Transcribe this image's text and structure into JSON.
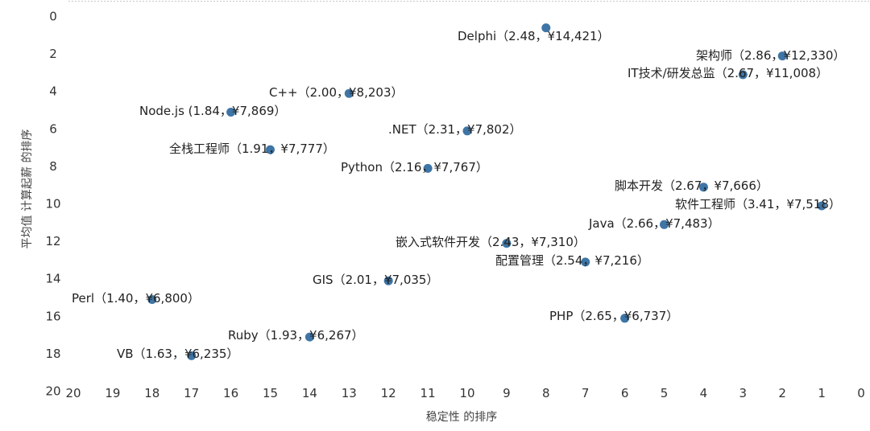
{
  "chart_data": {
    "type": "scatter",
    "title": "",
    "xlabel": "稳定性 的排序",
    "ylabel": "平均值 计算起薪 的排序",
    "xlim": [
      20,
      0
    ],
    "ylim": [
      0,
      20
    ],
    "x_reversed": true,
    "y_reversed": true,
    "x_ticks": [
      "20",
      "19",
      "18",
      "17",
      "16",
      "15",
      "14",
      "13",
      "12",
      "11",
      "10",
      "9",
      "8",
      "7",
      "6",
      "5",
      "4",
      "3",
      "2",
      "1",
      "0"
    ],
    "y_ticks": [
      "0",
      "2",
      "4",
      "6",
      "8",
      "10",
      "12",
      "14",
      "16",
      "18",
      "20"
    ],
    "grid": false,
    "marker_color": "#3E75A6",
    "points": [
      {
        "x": 8,
        "y": 0.5,
        "label": "Delphi（2.48，¥14,421）"
      },
      {
        "x": 2,
        "y": 2,
        "label": "架构师（2.86，¥12,330）"
      },
      {
        "x": 3,
        "y": 3,
        "label": "IT技术/研发总监（2.67，¥11,008）"
      },
      {
        "x": 13,
        "y": 4,
        "label": "C++（2.00，¥8,203）"
      },
      {
        "x": 16,
        "y": 5,
        "label": "Node.js (1.84，¥7,869）"
      },
      {
        "x": 10,
        "y": 6,
        "label": ".NET（2.31，¥7,802）"
      },
      {
        "x": 15,
        "y": 7,
        "label": "全栈工程师（1.91，¥7,777）"
      },
      {
        "x": 11,
        "y": 8,
        "label": "Python（2.16，¥7,767）"
      },
      {
        "x": 4,
        "y": 9,
        "label": "脚本开发（2.67，¥7,666）"
      },
      {
        "x": 1,
        "y": 10,
        "label": "软件工程师（3.41，¥7,518）"
      },
      {
        "x": 5,
        "y": 11,
        "label": "Java（2.66，¥7,483）"
      },
      {
        "x": 9,
        "y": 12,
        "label": "嵌入式软件开发（2.43，¥7,310）"
      },
      {
        "x": 7,
        "y": 13,
        "label": "配置管理（2.54，¥7,216）"
      },
      {
        "x": 12,
        "y": 14,
        "label": "GIS（2.01，¥7,035）"
      },
      {
        "x": 18,
        "y": 15,
        "label": "Perl（1.40，¥6,800）"
      },
      {
        "x": 6,
        "y": 16,
        "label": "PHP（2.65，¥6,737）"
      },
      {
        "x": 14,
        "y": 17,
        "label": "Ruby（1.93，¥6,267）"
      },
      {
        "x": 17,
        "y": 18,
        "label": "VB（1.63，¥6,235）"
      }
    ]
  },
  "overlay": {
    "arrow_icon": "down-arrow-icon",
    "arrow_glyph": "↓"
  }
}
